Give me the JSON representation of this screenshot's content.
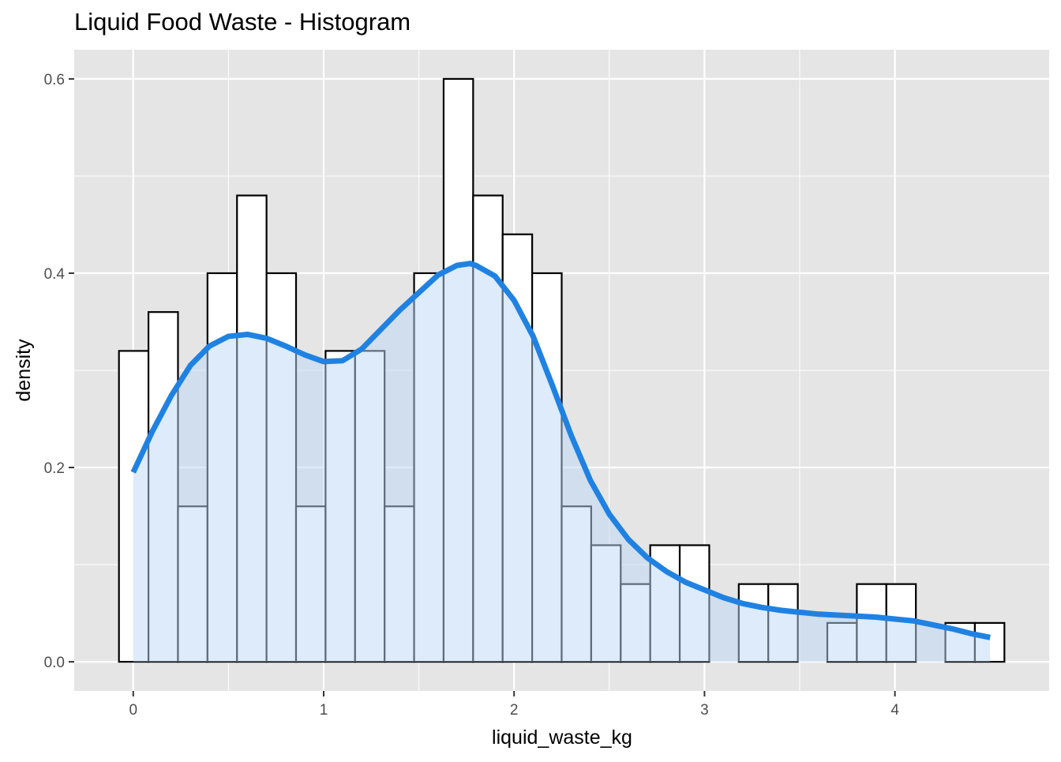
{
  "chart_data": {
    "type": "bar",
    "title": "Liquid Food Waste - Histogram",
    "xlabel": "liquid_waste_kg",
    "ylabel": "density",
    "xlim": [
      -0.31,
      4.81
    ],
    "ylim": [
      -0.03,
      0.63
    ],
    "x_ticks": [
      0,
      1,
      2,
      3,
      4
    ],
    "x_tick_labels": [
      "0",
      "1",
      "2",
      "3",
      "4"
    ],
    "y_ticks": [
      0.0,
      0.2,
      0.4,
      0.6
    ],
    "y_tick_labels": [
      "0.0",
      "0.2",
      "0.4",
      "0.6"
    ],
    "grid": true,
    "panel_background": "#e5e5e5",
    "grid_color": "#ffffff",
    "bar_fill": "#ffffff",
    "bar_outline": "#000000",
    "density_line_color": "#1f82e3",
    "density_fill_color": "#bcd8f5",
    "bins": {
      "width": 0.155,
      "left_edges": [
        -0.075,
        0.08,
        0.235,
        0.39,
        0.545,
        0.7,
        0.855,
        1.01,
        1.165,
        1.32,
        1.475,
        1.63,
        1.785,
        1.94,
        2.095,
        2.25,
        2.405,
        2.56,
        2.715,
        2.87,
        3.025,
        3.18,
        3.335,
        3.49,
        3.645,
        3.8,
        3.955,
        4.11,
        4.265,
        4.42
      ],
      "density": [
        0.32,
        0.36,
        0.16,
        0.4,
        0.48,
        0.4,
        0.16,
        0.32,
        0.32,
        0.16,
        0.4,
        0.6,
        0.48,
        0.44,
        0.4,
        0.16,
        0.12,
        0.08,
        0.12,
        0.12,
        0.0,
        0.08,
        0.08,
        0.0,
        0.04,
        0.08,
        0.08,
        0.0,
        0.04,
        0.04
      ]
    },
    "series": [
      {
        "type": "density",
        "x": [
          0.0,
          0.1,
          0.2,
          0.3,
          0.4,
          0.5,
          0.6,
          0.7,
          0.8,
          0.9,
          1.0,
          1.1,
          1.2,
          1.3,
          1.4,
          1.5,
          1.6,
          1.7,
          1.77,
          1.8,
          1.9,
          2.0,
          2.1,
          2.2,
          2.3,
          2.4,
          2.5,
          2.6,
          2.7,
          2.8,
          2.9,
          3.0,
          3.1,
          3.2,
          3.3,
          3.4,
          3.5,
          3.6,
          3.7,
          3.8,
          3.9,
          4.0,
          4.1,
          4.2,
          4.3,
          4.4,
          4.5
        ],
        "y": [
          0.195,
          0.237,
          0.274,
          0.305,
          0.325,
          0.335,
          0.337,
          0.333,
          0.325,
          0.316,
          0.309,
          0.31,
          0.322,
          0.342,
          0.362,
          0.38,
          0.398,
          0.408,
          0.41,
          0.408,
          0.397,
          0.372,
          0.335,
          0.285,
          0.233,
          0.187,
          0.152,
          0.126,
          0.107,
          0.093,
          0.082,
          0.074,
          0.066,
          0.06,
          0.056,
          0.053,
          0.051,
          0.049,
          0.048,
          0.047,
          0.046,
          0.044,
          0.042,
          0.038,
          0.034,
          0.029,
          0.025
        ]
      }
    ]
  }
}
